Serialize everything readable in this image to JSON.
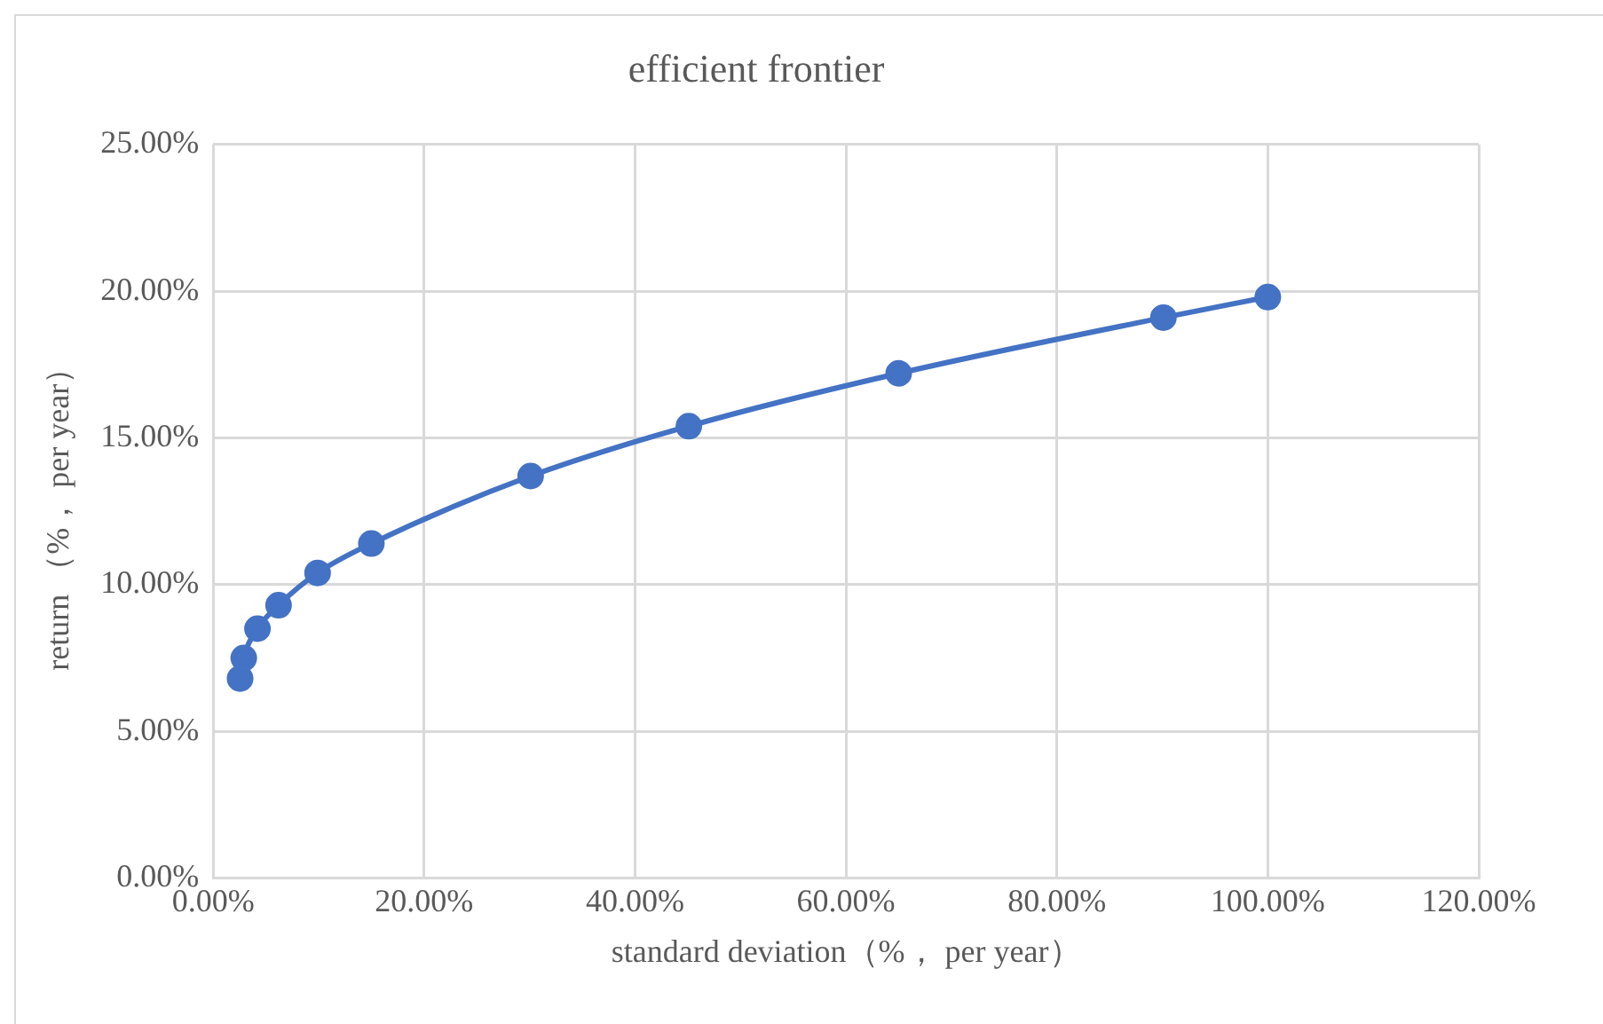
{
  "chart_data": {
    "type": "line",
    "title": "efficient frontier",
    "xlabel": "standard deviation（%， per year）",
    "ylabel": "return （%， per year）",
    "series": [
      {
        "color": "#4472c4",
        "x": [
          2.55,
          2.9,
          4.2,
          6.2,
          9.9,
          15.0,
          30.1,
          45.1,
          65.0,
          90.1,
          100
        ],
        "values": [
          6.8,
          7.5,
          8.5,
          9.3,
          10.4,
          11.4,
          13.7,
          15.4,
          17.2,
          19.1,
          19.8
        ]
      }
    ],
    "xlim": [
      0,
      120
    ],
    "xticks": [
      {
        "value": 0,
        "label": "0.00%"
      },
      {
        "value": 20,
        "label": "20.00%"
      },
      {
        "value": 40,
        "label": "40.00%"
      },
      {
        "value": 60,
        "label": "60.00%"
      },
      {
        "value": 80,
        "label": "80.00%"
      },
      {
        "value": 100,
        "label": "100.00%"
      },
      {
        "value": 120,
        "label": "120.00%"
      }
    ],
    "ylim": [
      0,
      25
    ],
    "yticks": [
      {
        "value": 0,
        "label": "0.00%"
      },
      {
        "value": 5,
        "label": "5.00%"
      },
      {
        "value": 10,
        "label": "10.00%"
      },
      {
        "value": 15,
        "label": "15.00%"
      },
      {
        "value": 20,
        "label": "20.00%"
      },
      {
        "value": 25,
        "label": "25.00%"
      }
    ],
    "grid": true,
    "legend": false,
    "marker": "circle",
    "line_style": "solid"
  }
}
